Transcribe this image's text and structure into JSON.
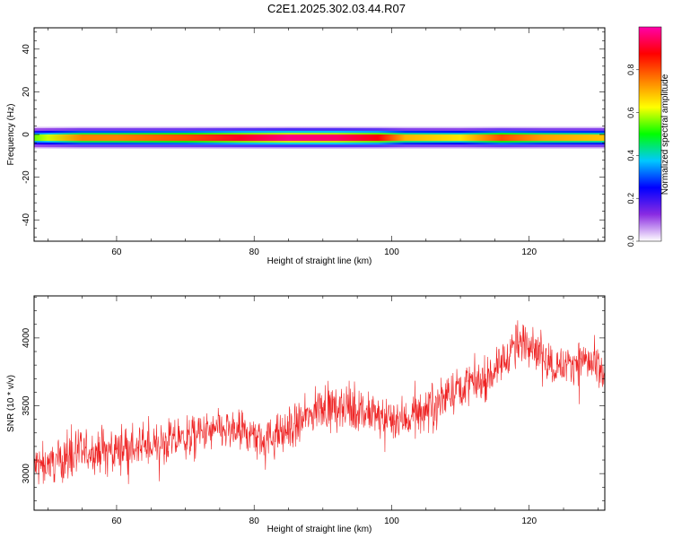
{
  "title": "C2E1.2025.302.03.44.R07",
  "chart_data": [
    {
      "type": "heatmap",
      "xlabel": "Height of straight line (km)",
      "ylabel": "Frequency (Hz)",
      "xlim": [
        48,
        131
      ],
      "ylim": [
        -50,
        50
      ],
      "x_ticks": [
        60,
        80,
        100,
        120
      ],
      "y_ticks": [
        -40,
        -20,
        0,
        20,
        40
      ],
      "colorbar": {
        "label": "Normalized spectral amplitude",
        "range": [
          0,
          1
        ],
        "ticks": [
          0.0,
          0.2,
          0.4,
          0.6,
          0.8
        ],
        "colors": [
          "#ffffff",
          "#8a2be2",
          "#0000ff",
          "#00c8ff",
          "#00ff00",
          "#ffff00",
          "#ff8000",
          "#ff0000",
          "#ff00aa"
        ]
      },
      "band": {
        "center_freq": -1.5,
        "half_width_core": 1.5,
        "half_width_outer": 4.5,
        "intensity_profile": [
          {
            "x": 48,
            "v": 0.55
          },
          {
            "x": 50,
            "v": 0.6
          },
          {
            "x": 55,
            "v": 0.75
          },
          {
            "x": 60,
            "v": 0.75
          },
          {
            "x": 70,
            "v": 0.8
          },
          {
            "x": 78,
            "v": 0.9
          },
          {
            "x": 85,
            "v": 0.97
          },
          {
            "x": 92,
            "v": 0.95
          },
          {
            "x": 98,
            "v": 0.88
          },
          {
            "x": 102,
            "v": 0.7
          },
          {
            "x": 110,
            "v": 0.65
          },
          {
            "x": 116,
            "v": 0.8
          },
          {
            "x": 122,
            "v": 0.72
          },
          {
            "x": 131,
            "v": 0.68
          }
        ]
      }
    },
    {
      "type": "line",
      "xlabel": "Height of straight line (km)",
      "ylabel": "SNR (10 * v/v)",
      "xlim": [
        48,
        131
      ],
      "ylim": [
        2730,
        4310
      ],
      "x_ticks": [
        60,
        80,
        100,
        120
      ],
      "y_ticks": [
        3000,
        3500,
        4000
      ],
      "series_color": "#ee2222",
      "trend": [
        {
          "x": 48,
          "y": 3050
        },
        {
          "x": 55,
          "y": 3150
        },
        {
          "x": 60,
          "y": 3180
        },
        {
          "x": 65,
          "y": 3200
        },
        {
          "x": 70,
          "y": 3260
        },
        {
          "x": 75,
          "y": 3320
        },
        {
          "x": 78,
          "y": 3300
        },
        {
          "x": 82,
          "y": 3250
        },
        {
          "x": 86,
          "y": 3350
        },
        {
          "x": 90,
          "y": 3500
        },
        {
          "x": 94,
          "y": 3480
        },
        {
          "x": 98,
          "y": 3420
        },
        {
          "x": 102,
          "y": 3400
        },
        {
          "x": 106,
          "y": 3500
        },
        {
          "x": 110,
          "y": 3650
        },
        {
          "x": 114,
          "y": 3700
        },
        {
          "x": 118,
          "y": 3950
        },
        {
          "x": 120,
          "y": 3980
        },
        {
          "x": 124,
          "y": 3780
        },
        {
          "x": 128,
          "y": 3850
        },
        {
          "x": 131,
          "y": 3700
        }
      ],
      "noise_amplitude": 110
    }
  ]
}
